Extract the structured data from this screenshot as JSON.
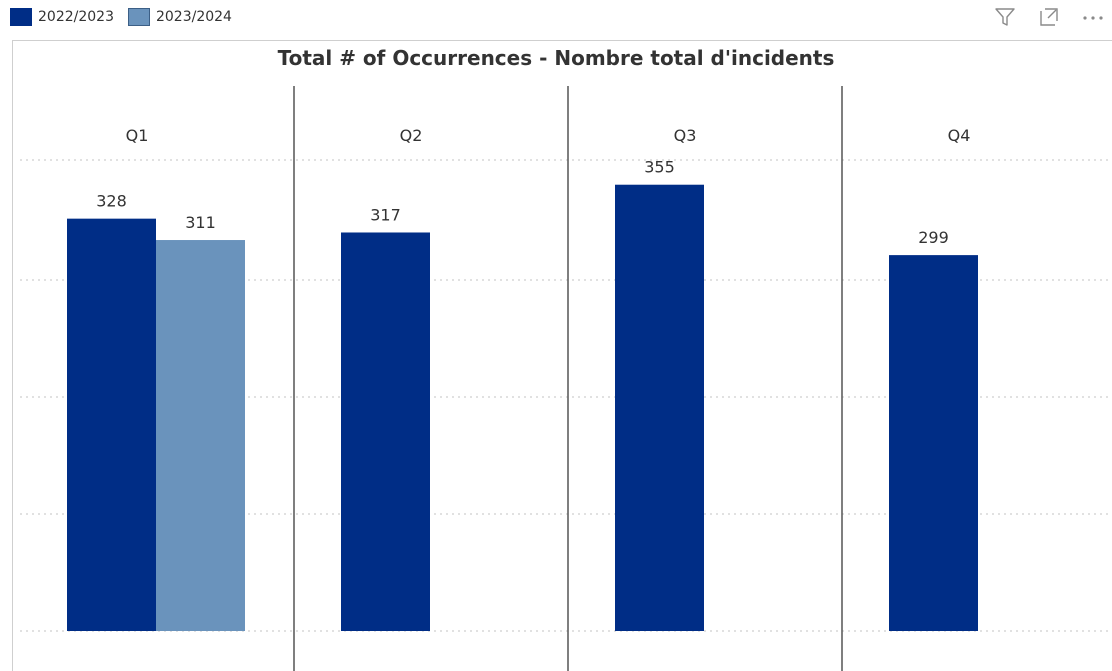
{
  "legend": [
    {
      "label": "2022/2023",
      "color": "#002D86"
    },
    {
      "label": "2023/2024",
      "color": "#6A93BC"
    }
  ],
  "toolbar": {
    "icons": [
      "filter-icon",
      "focus-mode-icon",
      "more-options-icon"
    ]
  },
  "chart_data": {
    "type": "bar",
    "title": "Total # of Occurrences - Nombre total d'incidents",
    "categories": [
      "Q1",
      "Q2",
      "Q3",
      "Q4"
    ],
    "series": [
      {
        "name": "2022/2023",
        "color": "#002D86",
        "values": [
          328,
          317,
          355,
          299
        ]
      },
      {
        "name": "2023/2024",
        "color": "#6A93BC",
        "values": [
          311,
          null,
          null,
          null
        ]
      }
    ],
    "ylim": [
      0,
      420
    ],
    "grid": true,
    "legend_position": "top-left"
  }
}
